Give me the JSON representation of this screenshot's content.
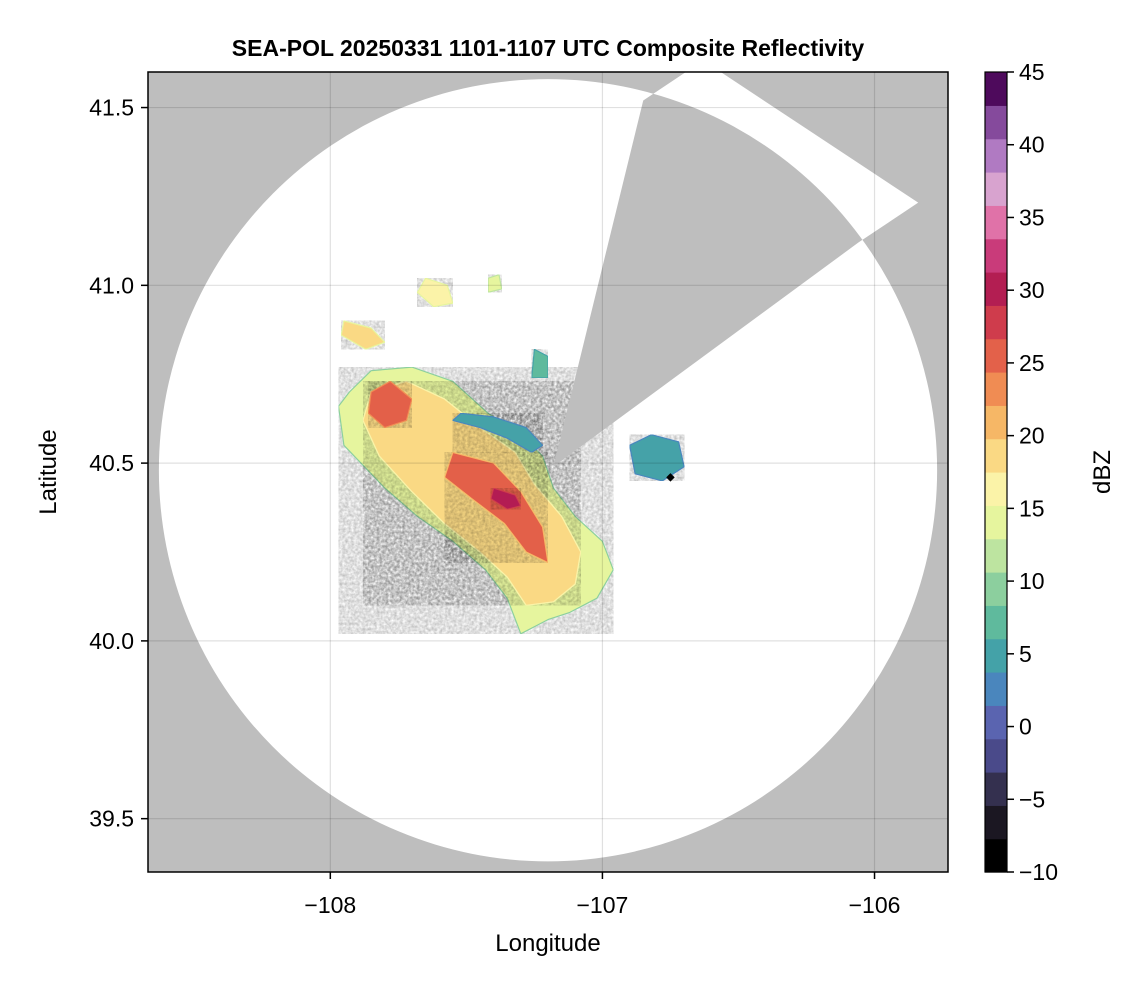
{
  "chart_data": {
    "type": "heatmap",
    "title": "SEA-POL 20250331 1101-1107 UTC Composite Reflectivity",
    "xlabel": "Longitude",
    "ylabel": "Latitude",
    "xlim": [
      -108.67,
      -105.73
    ],
    "ylim": [
      39.35,
      41.6
    ],
    "x_ticks": [
      -108,
      -107,
      -106
    ],
    "x_tick_labels": [
      "−108",
      "−107",
      "−106"
    ],
    "y_ticks": [
      39.5,
      40.0,
      40.5,
      41.0,
      41.5
    ],
    "y_tick_labels": [
      "39.5",
      "40.0",
      "40.5",
      "41.0",
      "41.5"
    ],
    "grid": true,
    "background_color": "#bebebe",
    "radar_site": {
      "lon": -107.18,
      "lat": 40.49
    },
    "coverage_center": {
      "lon": -107.2,
      "lat": 40.48
    },
    "coverage_radius_deg": {
      "lon": 1.43,
      "lat": 1.1
    },
    "blocked_sector": {
      "from_lon_lat": [
        -106.85,
        41.52
      ],
      "to_lon_lat": [
        -106.06,
        41.12
      ]
    },
    "marker": {
      "lon": -106.75,
      "lat": 40.46
    },
    "colorbar": {
      "label": "dBZ",
      "range": [
        -10,
        45
      ],
      "ticks": [
        -10,
        -5,
        0,
        5,
        10,
        15,
        20,
        25,
        30,
        35,
        40,
        45
      ],
      "tick_labels": [
        "−10",
        "−5",
        "0",
        "5",
        "10",
        "15",
        "20",
        "25",
        "30",
        "35",
        "40",
        "45"
      ],
      "colors": [
        "#000000",
        "#1b1722",
        "#34304f",
        "#4a4a8a",
        "#5a64b0",
        "#4a86bd",
        "#44a2a8",
        "#5fba9d",
        "#8ccf9e",
        "#bde4a0",
        "#e6f59e",
        "#fbf3a8",
        "#fad984",
        "#f6b766",
        "#f08c53",
        "#e3614a",
        "#cf3c4c",
        "#b31e52",
        "#c93b7a",
        "#e072a8",
        "#d8a3cf",
        "#b07ac2",
        "#854a9c",
        "#4e0a5c"
      ]
    },
    "echo_regions": [
      {
        "name": "main-storm-outer",
        "dbz": 13,
        "polygon": [
          [
            -107.93,
            40.7
          ],
          [
            -107.85,
            40.76
          ],
          [
            -107.7,
            40.77
          ],
          [
            -107.55,
            40.73
          ],
          [
            -107.42,
            40.64
          ],
          [
            -107.3,
            40.58
          ],
          [
            -107.22,
            40.52
          ],
          [
            -107.18,
            40.43
          ],
          [
            -107.1,
            40.35
          ],
          [
            -107.0,
            40.28
          ],
          [
            -106.96,
            40.2
          ],
          [
            -107.02,
            40.12
          ],
          [
            -107.12,
            40.08
          ],
          [
            -107.2,
            40.06
          ],
          [
            -107.3,
            40.02
          ],
          [
            -107.35,
            40.12
          ],
          [
            -107.43,
            40.2
          ],
          [
            -107.55,
            40.28
          ],
          [
            -107.68,
            40.35
          ],
          [
            -107.8,
            40.43
          ],
          [
            -107.95,
            40.55
          ],
          [
            -107.97,
            40.66
          ]
        ]
      },
      {
        "name": "main-storm-mid",
        "dbz": 19,
        "polygon": [
          [
            -107.85,
            40.7
          ],
          [
            -107.72,
            40.73
          ],
          [
            -107.58,
            40.68
          ],
          [
            -107.45,
            40.6
          ],
          [
            -107.32,
            40.53
          ],
          [
            -107.25,
            40.44
          ],
          [
            -107.15,
            40.35
          ],
          [
            -107.08,
            40.25
          ],
          [
            -107.1,
            40.16
          ],
          [
            -107.18,
            40.11
          ],
          [
            -107.28,
            40.1
          ],
          [
            -107.35,
            40.18
          ],
          [
            -107.45,
            40.25
          ],
          [
            -107.58,
            40.33
          ],
          [
            -107.7,
            40.42
          ],
          [
            -107.82,
            40.52
          ],
          [
            -107.88,
            40.62
          ]
        ]
      },
      {
        "name": "main-storm-core-a",
        "dbz": 26,
        "polygon": [
          [
            -107.85,
            40.7
          ],
          [
            -107.78,
            40.73
          ],
          [
            -107.7,
            40.68
          ],
          [
            -107.72,
            40.62
          ],
          [
            -107.8,
            40.6
          ],
          [
            -107.86,
            40.64
          ]
        ]
      },
      {
        "name": "main-storm-core-b",
        "dbz": 25,
        "polygon": [
          [
            -107.55,
            40.53
          ],
          [
            -107.4,
            40.5
          ],
          [
            -107.3,
            40.42
          ],
          [
            -107.22,
            40.32
          ],
          [
            -107.2,
            40.22
          ],
          [
            -107.28,
            40.25
          ],
          [
            -107.36,
            40.33
          ],
          [
            -107.48,
            40.4
          ],
          [
            -107.58,
            40.46
          ]
        ]
      },
      {
        "name": "main-storm-core-max",
        "dbz": 31,
        "polygon": [
          [
            -107.4,
            40.43
          ],
          [
            -107.32,
            40.41
          ],
          [
            -107.3,
            40.38
          ],
          [
            -107.35,
            40.37
          ],
          [
            -107.41,
            40.4
          ]
        ]
      },
      {
        "name": "east-low-band",
        "dbz": 5,
        "polygon": [
          [
            -107.52,
            40.64
          ],
          [
            -107.4,
            40.63
          ],
          [
            -107.28,
            40.6
          ],
          [
            -107.22,
            40.55
          ],
          [
            -107.26,
            40.53
          ],
          [
            -107.35,
            40.57
          ],
          [
            -107.45,
            40.6
          ],
          [
            -107.55,
            40.62
          ]
        ]
      },
      {
        "name": "east-cell-cluster",
        "dbz": 6,
        "polygon": [
          [
            -106.9,
            40.55
          ],
          [
            -106.82,
            40.58
          ],
          [
            -106.72,
            40.56
          ],
          [
            -106.7,
            40.49
          ],
          [
            -106.78,
            40.45
          ],
          [
            -106.88,
            40.47
          ]
        ]
      },
      {
        "name": "north-cell-1",
        "dbz": 17,
        "polygon": [
          [
            -107.65,
            41.02
          ],
          [
            -107.57,
            41.0
          ],
          [
            -107.55,
            40.95
          ],
          [
            -107.62,
            40.94
          ],
          [
            -107.68,
            40.98
          ]
        ]
      },
      {
        "name": "north-cell-2",
        "dbz": 14,
        "polygon": [
          [
            -107.42,
            41.02
          ],
          [
            -107.38,
            41.03
          ],
          [
            -107.37,
            40.99
          ],
          [
            -107.42,
            40.98
          ]
        ]
      },
      {
        "name": "northwest-cell",
        "dbz": 18,
        "polygon": [
          [
            -107.95,
            40.9
          ],
          [
            -107.85,
            40.88
          ],
          [
            -107.8,
            40.84
          ],
          [
            -107.87,
            40.82
          ],
          [
            -107.96,
            40.86
          ]
        ]
      },
      {
        "name": "northeast-cell",
        "dbz": 8,
        "polygon": [
          [
            -107.25,
            40.82
          ],
          [
            -107.2,
            40.8
          ],
          [
            -107.2,
            40.74
          ],
          [
            -107.26,
            40.74
          ]
        ]
      }
    ]
  }
}
